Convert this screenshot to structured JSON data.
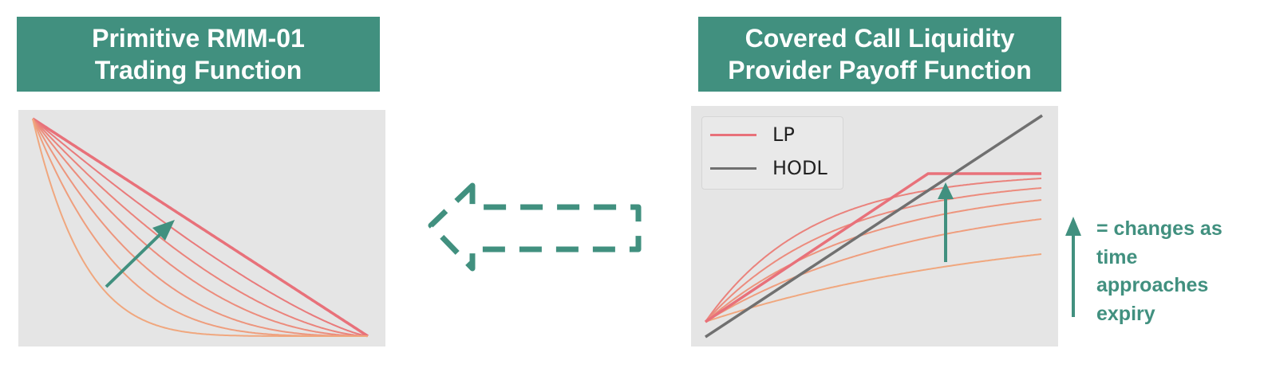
{
  "left_panel": {
    "title_line1": "Primitive RMM-01",
    "title_line2": "Trading Function",
    "curve_powers": [
      1,
      1.3,
      1.65,
      2.1,
      2.8,
      3.9,
      6.5
    ],
    "colors": {
      "outer": "#e8717a",
      "inner": "#f0a77e",
      "arrow": "#41907f"
    }
  },
  "right_panel": {
    "title_line1": "Covered Call Liquidity",
    "title_line2": "Provider Payoff Function",
    "legend": [
      {
        "label": "LP",
        "color": "#e8717a"
      },
      {
        "label": "HODL",
        "color": "#777777"
      }
    ]
  },
  "annotation": {
    "line1": "= changes as",
    "line2": "time",
    "line3": "approaches",
    "line4": "expiry",
    "color": "#41907f"
  },
  "colors": {
    "accent": "#41907f",
    "plot_bg": "#e5e5e5"
  }
}
